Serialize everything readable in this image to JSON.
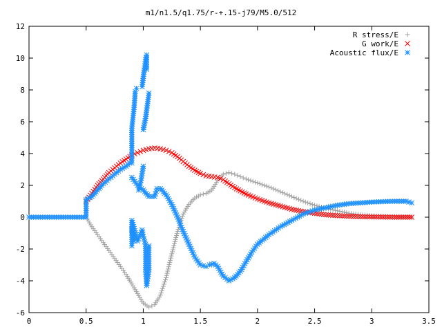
{
  "chart_data": {
    "type": "scatter",
    "title": "m1/n1.5/q1.75/r-+.15-j79/M5.0/512",
    "xlabel": "",
    "ylabel": "",
    "xlim": [
      0,
      3.5
    ],
    "ylim": [
      -6,
      12
    ],
    "x_ticks": [
      "0",
      "0.5",
      "1",
      "1.5",
      "2",
      "2.5",
      "3",
      "3.5"
    ],
    "y_ticks": [
      "-6",
      "-4",
      "-2",
      "0",
      "2",
      "4",
      "6",
      "8",
      "10",
      "12"
    ],
    "grid": false,
    "legend_position": "top-right",
    "series": [
      {
        "name": "R stress/E",
        "marker": "plus",
        "color": "#a0a0a0",
        "points": [
          [
            0.0,
            0.0
          ],
          [
            0.1,
            0.0
          ],
          [
            0.2,
            0.0
          ],
          [
            0.3,
            0.0
          ],
          [
            0.4,
            0.0
          ],
          [
            0.5,
            0.0
          ],
          [
            0.55,
            -0.6
          ],
          [
            0.6,
            -1.1
          ],
          [
            0.65,
            -1.6
          ],
          [
            0.7,
            -2.1
          ],
          [
            0.75,
            -2.6
          ],
          [
            0.8,
            -3.1
          ],
          [
            0.85,
            -3.6
          ],
          [
            0.9,
            -4.2
          ],
          [
            0.95,
            -4.8
          ],
          [
            1.0,
            -5.4
          ],
          [
            1.05,
            -5.65
          ],
          [
            1.1,
            -5.5
          ],
          [
            1.15,
            -4.9
          ],
          [
            1.2,
            -3.8
          ],
          [
            1.25,
            -2.3
          ],
          [
            1.3,
            -0.9
          ],
          [
            1.35,
            0.2
          ],
          [
            1.4,
            0.8
          ],
          [
            1.45,
            1.2
          ],
          [
            1.5,
            1.4
          ],
          [
            1.55,
            1.5
          ],
          [
            1.6,
            1.7
          ],
          [
            1.65,
            2.3
          ],
          [
            1.7,
            2.7
          ],
          [
            1.75,
            2.8
          ],
          [
            1.8,
            2.7
          ],
          [
            1.85,
            2.55
          ],
          [
            1.9,
            2.4
          ],
          [
            2.0,
            2.15
          ],
          [
            2.1,
            1.9
          ],
          [
            2.2,
            1.6
          ],
          [
            2.3,
            1.3
          ],
          [
            2.4,
            1.0
          ],
          [
            2.5,
            0.75
          ],
          [
            2.6,
            0.55
          ],
          [
            2.7,
            0.4
          ],
          [
            2.8,
            0.25
          ],
          [
            2.9,
            0.15
          ],
          [
            3.0,
            0.1
          ],
          [
            3.1,
            0.06
          ],
          [
            3.2,
            0.03
          ],
          [
            3.3,
            0.01
          ],
          [
            3.35,
            0.0
          ]
        ]
      },
      {
        "name": "G work/E",
        "marker": "cross",
        "color": "#ff0000",
        "points": [
          [
            0.5,
            1.0
          ],
          [
            0.55,
            1.5
          ],
          [
            0.6,
            2.0
          ],
          [
            0.65,
            2.4
          ],
          [
            0.7,
            2.8
          ],
          [
            0.75,
            3.1
          ],
          [
            0.8,
            3.4
          ],
          [
            0.85,
            3.65
          ],
          [
            0.9,
            3.9
          ],
          [
            0.95,
            4.05
          ],
          [
            1.0,
            4.2
          ],
          [
            1.05,
            4.3
          ],
          [
            1.1,
            4.35
          ],
          [
            1.15,
            4.3
          ],
          [
            1.2,
            4.2
          ],
          [
            1.25,
            4.05
          ],
          [
            1.3,
            3.8
          ],
          [
            1.35,
            3.5
          ],
          [
            1.4,
            3.2
          ],
          [
            1.45,
            2.95
          ],
          [
            1.5,
            2.75
          ],
          [
            1.55,
            2.6
          ],
          [
            1.6,
            2.55
          ],
          [
            1.65,
            2.5
          ],
          [
            1.7,
            2.35
          ],
          [
            1.75,
            2.1
          ],
          [
            1.8,
            1.85
          ],
          [
            1.9,
            1.45
          ],
          [
            2.0,
            1.15
          ],
          [
            2.1,
            0.9
          ],
          [
            2.2,
            0.7
          ],
          [
            2.3,
            0.5
          ],
          [
            2.4,
            0.35
          ],
          [
            2.5,
            0.25
          ],
          [
            2.6,
            0.15
          ],
          [
            2.7,
            0.1
          ],
          [
            2.8,
            0.06
          ],
          [
            2.9,
            0.03
          ],
          [
            3.0,
            0.02
          ],
          [
            3.1,
            0.01
          ],
          [
            3.2,
            0.0
          ],
          [
            3.35,
            0.0
          ]
        ]
      },
      {
        "name": "Acoustic flux/E",
        "marker": "star",
        "color": "#1e90ff",
        "points": [
          [
            0.0,
            0.0
          ],
          [
            0.1,
            0.0
          ],
          [
            0.2,
            0.0
          ],
          [
            0.3,
            0.0
          ],
          [
            0.4,
            0.0
          ],
          [
            0.5,
            0.0
          ],
          [
            0.5,
            1.1
          ],
          [
            0.55,
            1.3
          ],
          [
            0.6,
            1.7
          ],
          [
            0.65,
            2.1
          ],
          [
            0.7,
            2.4
          ],
          [
            0.75,
            2.7
          ],
          [
            0.8,
            3.0
          ],
          [
            0.85,
            3.2
          ],
          [
            0.88,
            3.4
          ],
          [
            0.9,
            3.4
          ],
          [
            0.9,
            4.5
          ],
          [
            0.9,
            5.6
          ],
          [
            0.92,
            6.9
          ],
          [
            0.93,
            7.9
          ],
          [
            0.94,
            8.1
          ],
          [
            0.9,
            -0.8
          ],
          [
            0.92,
            -1.5
          ],
          [
            0.9,
            -1.8
          ],
          [
            0.9,
            -0.2
          ],
          [
            0.95,
            -1.5
          ],
          [
            0.99,
            -0.8
          ],
          [
            1.0,
            -1.2
          ],
          [
            1.02,
            -1.7
          ],
          [
            1.02,
            -3.3
          ],
          [
            1.03,
            -4.3
          ],
          [
            1.05,
            -3.3
          ],
          [
            1.05,
            -1.8
          ],
          [
            0.96,
            1.7
          ],
          [
            0.98,
            2.3
          ],
          [
            1.0,
            3.2
          ],
          [
            1.0,
            5.5
          ],
          [
            1.02,
            6.2
          ],
          [
            1.05,
            7.8
          ],
          [
            0.99,
            8.2
          ],
          [
            1.02,
            9.9
          ],
          [
            1.03,
            10.2
          ],
          [
            1.03,
            9.3
          ],
          [
            0.9,
            2.5
          ],
          [
            0.95,
            2.0
          ],
          [
            1.0,
            1.7
          ],
          [
            1.05,
            1.3
          ],
          [
            1.1,
            1.3
          ],
          [
            1.12,
            1.8
          ],
          [
            1.15,
            1.8
          ],
          [
            1.2,
            1.4
          ],
          [
            1.25,
            0.8
          ],
          [
            1.3,
            0.0
          ],
          [
            1.35,
            -0.9
          ],
          [
            1.4,
            -1.7
          ],
          [
            1.45,
            -2.5
          ],
          [
            1.5,
            -3.0
          ],
          [
            1.55,
            -3.1
          ],
          [
            1.58,
            -3.0
          ],
          [
            1.62,
            -2.9
          ],
          [
            1.65,
            -3.1
          ],
          [
            1.7,
            -3.7
          ],
          [
            1.75,
            -4.0
          ],
          [
            1.8,
            -3.8
          ],
          [
            1.85,
            -3.4
          ],
          [
            1.9,
            -2.8
          ],
          [
            1.95,
            -2.2
          ],
          [
            2.0,
            -1.7
          ],
          [
            2.1,
            -1.1
          ],
          [
            2.2,
            -0.6
          ],
          [
            2.3,
            -0.2
          ],
          [
            2.4,
            0.2
          ],
          [
            2.5,
            0.45
          ],
          [
            2.6,
            0.6
          ],
          [
            2.7,
            0.75
          ],
          [
            2.8,
            0.85
          ],
          [
            2.9,
            0.9
          ],
          [
            3.0,
            0.95
          ],
          [
            3.1,
            0.98
          ],
          [
            3.2,
            1.0
          ],
          [
            3.3,
            1.0
          ],
          [
            3.35,
            0.9
          ]
        ]
      }
    ]
  }
}
